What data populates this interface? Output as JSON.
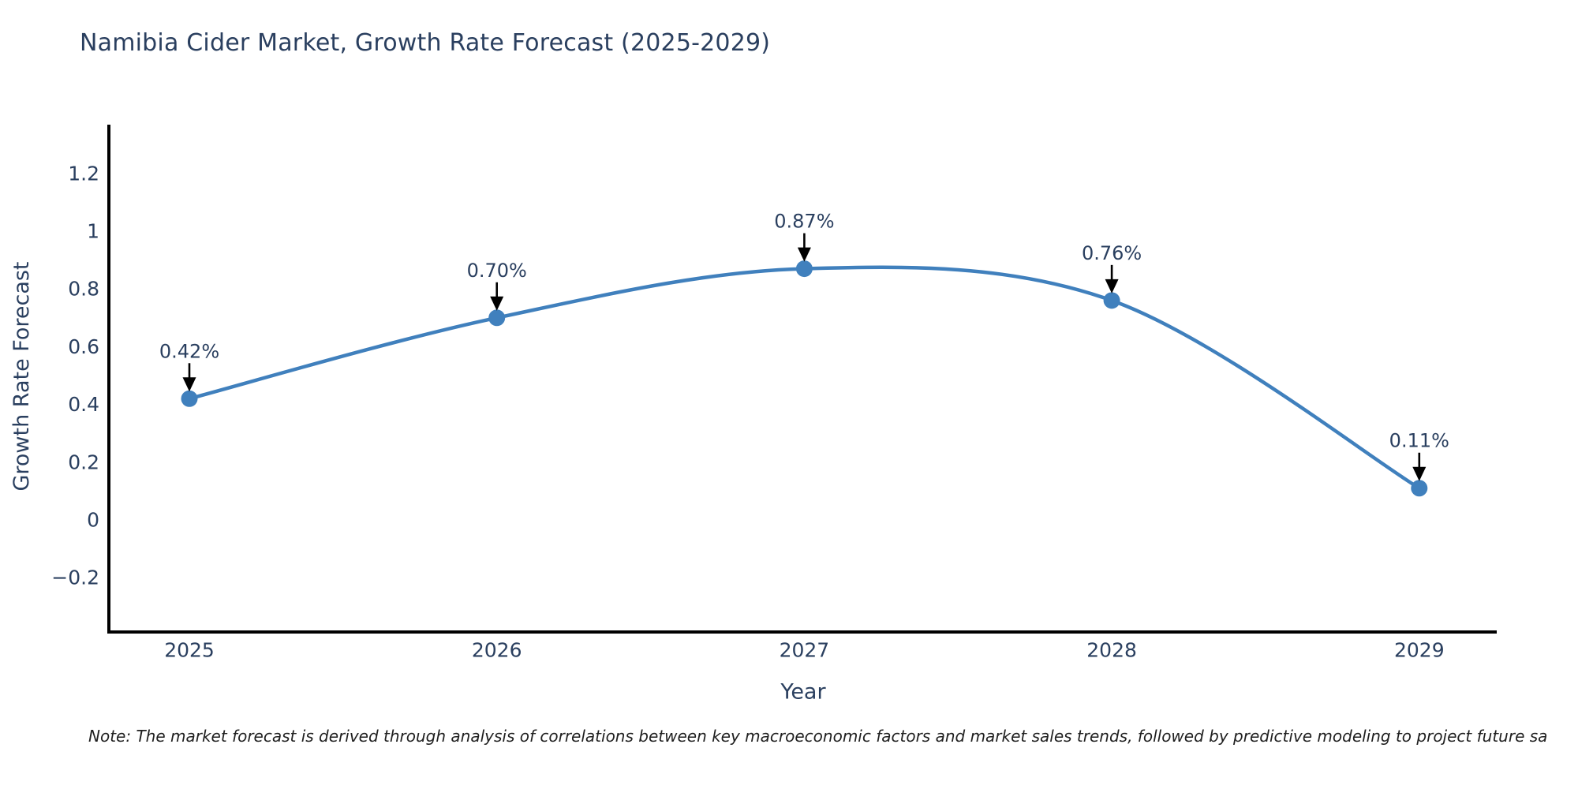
{
  "title": "Namibia Cider Market, Growth Rate Forecast (2025-2029)",
  "note": "Note: The market forecast is derived through analysis of correlations between key macroeconomic factors and market sales trends, followed by predictive modeling to project future sa",
  "chart_data": {
    "type": "line",
    "title": "Namibia Cider Market, Growth Rate Forecast (2025-2029)",
    "x": [
      2025,
      2026,
      2027,
      2028,
      2029
    ],
    "y": [
      0.42,
      0.7,
      0.87,
      0.76,
      0.11
    ],
    "point_labels": [
      "0.42%",
      "0.70%",
      "0.87%",
      "0.76%",
      "0.11%"
    ],
    "xlabel": "Year",
    "ylabel": "Growth Rate Forecast",
    "x_tick_labels": [
      "2025",
      "2026",
      "2027",
      "2028",
      "2029"
    ],
    "y_ticks": [
      {
        "v": 1.2,
        "label": "1.2"
      },
      {
        "v": 1.0,
        "label": "1"
      },
      {
        "v": 0.8,
        "label": "0.8"
      },
      {
        "v": 0.6,
        "label": "0.6"
      },
      {
        "v": 0.4,
        "label": "0.4"
      },
      {
        "v": 0.2,
        "label": "0.2"
      },
      {
        "v": 0.0,
        "label": "0"
      },
      {
        "v": -0.2,
        "label": "−0.2"
      }
    ],
    "ylim": [
      -0.4,
      1.4
    ],
    "line_shape": "spline",
    "grid": false,
    "legend": "none",
    "colors": {
      "line": "#4080bd",
      "marker": "#4080bd",
      "axis": "#000000",
      "tick_text": "#2a3f5f",
      "annotation_text": "#2a3f5f",
      "annotation_arrow": "#000000",
      "background": "#ffffff"
    }
  }
}
